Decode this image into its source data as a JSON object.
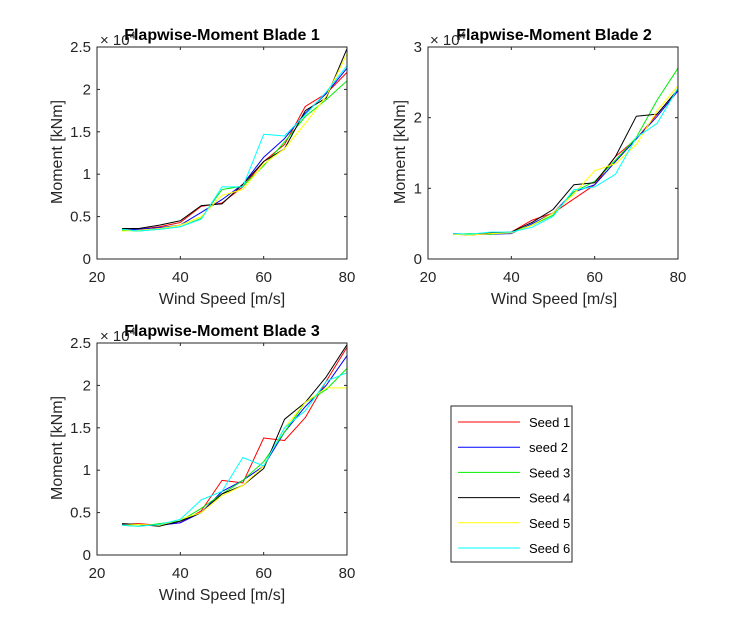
{
  "colors": {
    "Seed 1": "#ff0000",
    "seed 2": "#0000ff",
    "Seed 3": "#00ee00",
    "Seed 4": "#000000",
    "Seed 5": "#ffff00",
    "Seed 6": "#00ffff",
    "axis": "#262626",
    "legend_border": "#262626"
  },
  "legend": {
    "placement": "bottom-right",
    "entries": [
      "Seed 1",
      "seed 2",
      "Seed 3",
      "Seed 4",
      "Seed 5",
      "Seed 6"
    ]
  },
  "chart_data": [
    {
      "type": "line",
      "title": "Flapwise-Moment Blade 1",
      "xlabel": "Wind Speed [m/s]",
      "ylabel": "Moment [kNm]",
      "y_exponent_label": "× 10",
      "y_exponent": "4",
      "xlim": [
        20,
        80
      ],
      "ylim": [
        0,
        2.5
      ],
      "xticks": [
        20,
        40,
        60,
        80
      ],
      "yticks": [
        0,
        0.5,
        1,
        1.5,
        2,
        2.5
      ],
      "ytick_labels": [
        "0",
        "0.5",
        "1",
        "1.5",
        "2",
        "2.5"
      ],
      "grid": false,
      "x": [
        26,
        30,
        35,
        40,
        45,
        50,
        55,
        60,
        65,
        70,
        75,
        80
      ],
      "series": [
        {
          "name": "Seed 1",
          "values": [
            0.35,
            0.35,
            0.38,
            0.43,
            0.62,
            0.66,
            0.85,
            1.15,
            1.35,
            1.8,
            1.95,
            2.2
          ]
        },
        {
          "name": "seed 2",
          "values": [
            0.34,
            0.35,
            0.37,
            0.4,
            0.55,
            0.7,
            0.88,
            1.2,
            1.42,
            1.72,
            1.95,
            2.25
          ]
        },
        {
          "name": "Seed 3",
          "values": [
            0.34,
            0.33,
            0.35,
            0.38,
            0.48,
            0.82,
            0.86,
            1.1,
            1.38,
            1.68,
            1.88,
            2.1
          ]
        },
        {
          "name": "Seed 4",
          "values": [
            0.36,
            0.36,
            0.4,
            0.45,
            0.63,
            0.65,
            0.88,
            1.15,
            1.3,
            1.75,
            1.9,
            2.48
          ]
        },
        {
          "name": "Seed 5",
          "values": [
            0.33,
            0.34,
            0.36,
            0.4,
            0.5,
            0.75,
            0.82,
            1.12,
            1.3,
            1.6,
            1.92,
            2.42
          ]
        },
        {
          "name": "Seed 6",
          "values": [
            0.35,
            0.33,
            0.35,
            0.38,
            0.47,
            0.85,
            0.85,
            1.47,
            1.45,
            1.7,
            1.97,
            2.28
          ]
        }
      ]
    },
    {
      "type": "line",
      "title": "Flapwise-Moment Blade 2",
      "xlabel": "Wind Speed [m/s]",
      "ylabel": "Moment [kNm]",
      "y_exponent_label": "× 10",
      "y_exponent": "4",
      "xlim": [
        20,
        80
      ],
      "ylim": [
        0,
        3
      ],
      "xticks": [
        20,
        40,
        60,
        80
      ],
      "yticks": [
        0,
        1,
        2,
        3
      ],
      "ytick_labels": [
        "0",
        "1",
        "2",
        "3"
      ],
      "grid": false,
      "x": [
        26,
        30,
        35,
        40,
        45,
        50,
        55,
        60,
        65,
        70,
        75,
        80
      ],
      "series": [
        {
          "name": "Seed 1",
          "values": [
            0.35,
            0.34,
            0.36,
            0.38,
            0.55,
            0.65,
            0.85,
            1.05,
            1.45,
            1.7,
            2.05,
            2.4
          ]
        },
        {
          "name": "seed 2",
          "values": [
            0.36,
            0.35,
            0.35,
            0.36,
            0.5,
            0.65,
            0.95,
            1.05,
            1.38,
            1.7,
            2.02,
            2.38
          ]
        },
        {
          "name": "Seed 3",
          "values": [
            0.35,
            0.36,
            0.35,
            0.38,
            0.48,
            0.62,
            0.95,
            1.1,
            1.4,
            1.72,
            2.25,
            2.7
          ]
        },
        {
          "name": "Seed 4",
          "values": [
            0.36,
            0.34,
            0.37,
            0.38,
            0.52,
            0.7,
            1.05,
            1.08,
            1.45,
            2.02,
            2.05,
            2.4
          ]
        },
        {
          "name": "Seed 5",
          "values": [
            0.35,
            0.34,
            0.36,
            0.37,
            0.48,
            0.65,
            0.92,
            1.25,
            1.35,
            1.62,
            2.1,
            2.45
          ]
        },
        {
          "name": "Seed 6",
          "values": [
            0.36,
            0.35,
            0.38,
            0.38,
            0.45,
            0.6,
            0.98,
            1.02,
            1.2,
            1.72,
            1.92,
            2.42
          ]
        }
      ]
    },
    {
      "type": "line",
      "title": "Flapwise-Moment Blade 3",
      "xlabel": "Wind Speed [m/s]",
      "ylabel": "Moment [kNm]",
      "y_exponent_label": "× 10",
      "y_exponent": "4",
      "xlim": [
        20,
        80
      ],
      "ylim": [
        0,
        2.5
      ],
      "xticks": [
        20,
        40,
        60,
        80
      ],
      "yticks": [
        0,
        0.5,
        1,
        1.5,
        2,
        2.5
      ],
      "ytick_labels": [
        "0",
        "0.5",
        "1",
        "1.5",
        "2",
        "2.5"
      ],
      "grid": false,
      "x": [
        26,
        30,
        35,
        40,
        45,
        50,
        55,
        60,
        65,
        70,
        75,
        80
      ],
      "series": [
        {
          "name": "Seed 1",
          "values": [
            0.36,
            0.37,
            0.35,
            0.38,
            0.52,
            0.88,
            0.85,
            1.38,
            1.35,
            1.62,
            2.05,
            2.45
          ]
        },
        {
          "name": "seed 2",
          "values": [
            0.36,
            0.36,
            0.35,
            0.38,
            0.5,
            0.75,
            0.88,
            1.05,
            1.45,
            1.75,
            2.0,
            2.35
          ]
        },
        {
          "name": "Seed 3",
          "values": [
            0.35,
            0.34,
            0.37,
            0.4,
            0.55,
            0.72,
            0.88,
            1.1,
            1.45,
            1.8,
            1.95,
            2.2
          ]
        },
        {
          "name": "Seed 4",
          "values": [
            0.37,
            0.36,
            0.34,
            0.4,
            0.5,
            0.72,
            0.82,
            1.02,
            1.6,
            1.8,
            2.1,
            2.48
          ]
        },
        {
          "name": "Seed 5",
          "values": [
            0.35,
            0.36,
            0.35,
            0.42,
            0.5,
            0.7,
            0.82,
            1.05,
            1.5,
            1.8,
            1.97,
            1.97
          ]
        },
        {
          "name": "Seed 6",
          "values": [
            0.35,
            0.34,
            0.36,
            0.42,
            0.65,
            0.75,
            1.15,
            1.05,
            1.5,
            1.7,
            2.05,
            2.15
          ]
        }
      ]
    }
  ]
}
